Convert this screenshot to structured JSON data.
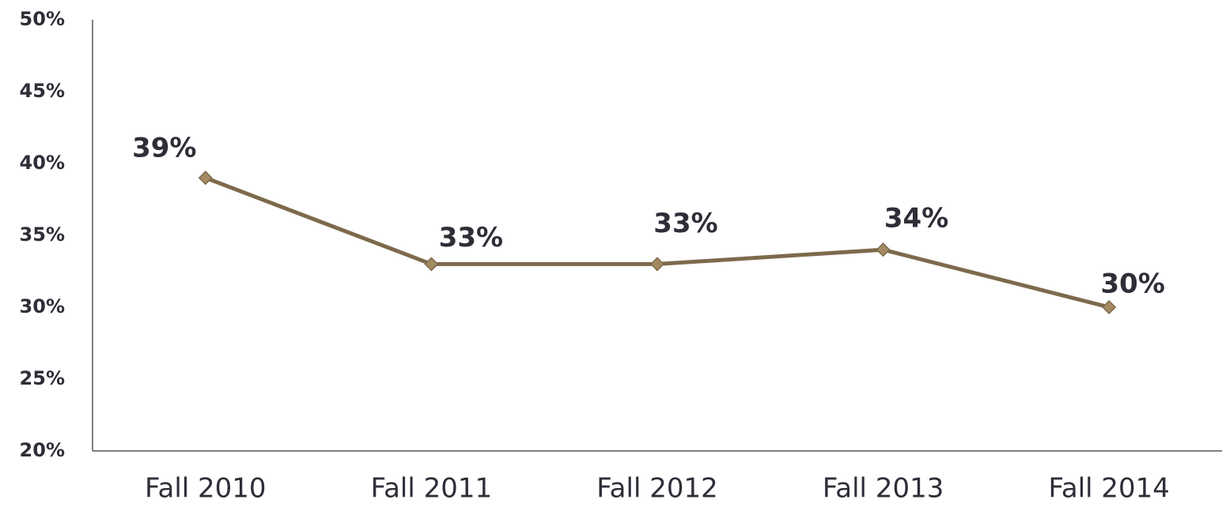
{
  "chart_data": {
    "type": "line",
    "categories": [
      "Fall 2010",
      "Fall 2011",
      "Fall 2012",
      "Fall 2013",
      "Fall 2014"
    ],
    "series": [
      {
        "values": [
          39,
          33,
          33,
          34,
          30
        ],
        "value_labels": [
          "39%",
          "33%",
          "33%",
          "34%",
          "30%"
        ],
        "color": "#7d6a4c",
        "marker_color": "#a48a62"
      }
    ],
    "ylim": [
      20,
      50
    ],
    "yticks": [
      {
        "value": 20,
        "label": "20%"
      },
      {
        "value": 25,
        "label": "25%"
      },
      {
        "value": 30,
        "label": "30%"
      },
      {
        "value": 35,
        "label": "35%"
      },
      {
        "value": 40,
        "label": "40%"
      },
      {
        "value": 45,
        "label": "45%"
      },
      {
        "value": 50,
        "label": "50%"
      }
    ],
    "grid": false
  }
}
